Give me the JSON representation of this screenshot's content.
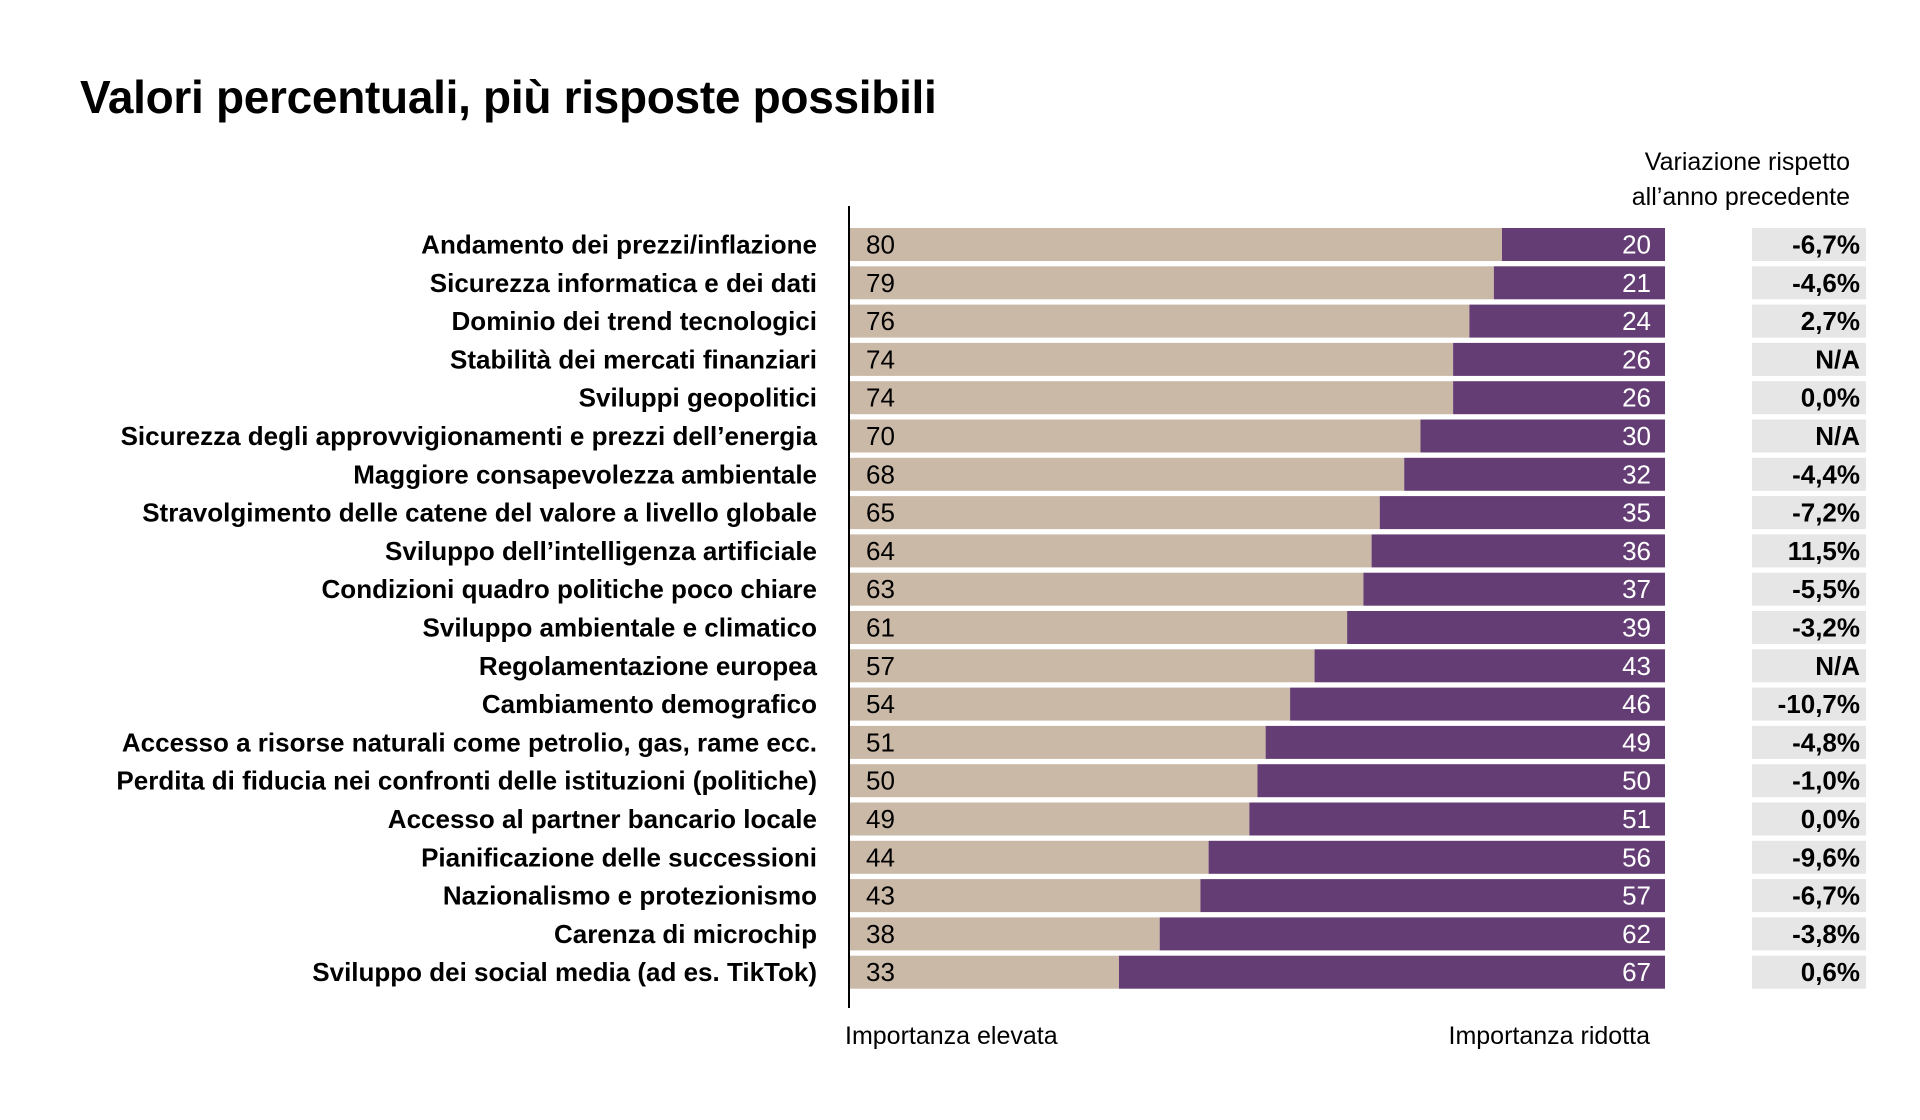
{
  "title": "Valori percentuali, più risposte possibili",
  "change_header": [
    "Variazione rispetto",
    "all’anno precedente"
  ],
  "colors": {
    "high": "#cbb9a7",
    "low": "#633d74",
    "change_bg": "#e6e6e6",
    "high_text": "#000000",
    "low_text": "#ffffff"
  },
  "chart_data": {
    "type": "bar",
    "orientation": "horizontal",
    "stacked": true,
    "percent_total": 100,
    "categories": [
      "Andamento dei prezzi/inflazione",
      "Sicurezza informatica e dei dati",
      "Dominio dei trend tecnologici",
      "Stabilità dei mercati finanziari",
      "Sviluppi geopolitici",
      "Sicurezza degli approvvigionamenti e prezzi dell’energia",
      "Maggiore consapevolezza ambientale",
      "Stravolgimento delle catene del valore a livello globale",
      "Sviluppo dell’intelligenza artificiale",
      "Condizioni quadro politiche poco chiare",
      "Sviluppo ambientale e climatico",
      "Regolamentazione europea",
      "Cambiamento demografico",
      "Accesso a risorse naturali come petrolio, gas, rame ecc.",
      "Perdita di fiducia nei confronti delle istituzioni (politiche)",
      "Accesso al partner bancario locale",
      "Pianificazione delle successioni",
      "Nazionalismo e protezionismo",
      "Carenza di microchip",
      "Sviluppo dei social media (ad es. TikTok)"
    ],
    "series": [
      {
        "name": "Importanza elevata",
        "values": [
          80,
          79,
          76,
          74,
          74,
          70,
          68,
          65,
          64,
          63,
          61,
          57,
          54,
          51,
          50,
          49,
          44,
          43,
          38,
          33
        ]
      },
      {
        "name": "Importanza ridotta",
        "values": [
          20,
          21,
          24,
          26,
          26,
          30,
          32,
          35,
          36,
          37,
          39,
          43,
          46,
          49,
          50,
          51,
          56,
          57,
          62,
          67
        ]
      }
    ],
    "changes": [
      "-6,7%",
      "-4,6%",
      "2,7%",
      "N/A",
      "0,0%",
      "N/A",
      "-4,4%",
      "-7,2%",
      "11,5%",
      "-5,5%",
      "-3,2%",
      "N/A",
      "-10,7%",
      "-4,8%",
      "-1,0%",
      "0,0%",
      "-9,6%",
      "-6,7%",
      "-3,8%",
      "0,6%"
    ],
    "xlim": [
      0,
      100
    ],
    "grid": false,
    "legend": "bottom"
  }
}
